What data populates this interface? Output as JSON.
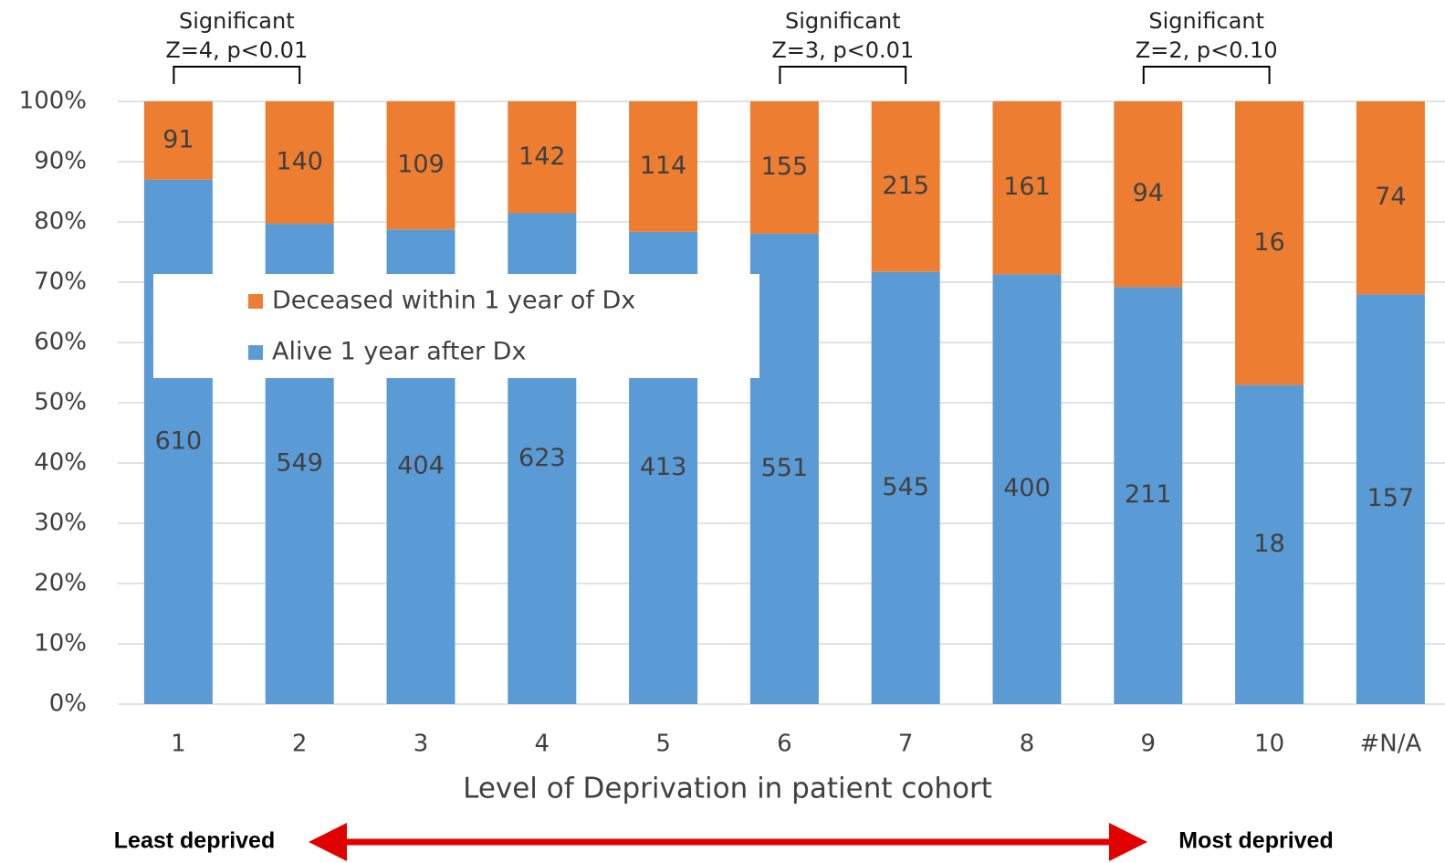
{
  "chart_data": {
    "type": "bar",
    "stacking": "percent",
    "x_label": "Level of Deprivation in patient cohort",
    "categories": [
      "1",
      "2",
      "3",
      "4",
      "5",
      "6",
      "7",
      "8",
      "9",
      "10",
      "#N/A"
    ],
    "series": [
      {
        "name": "Alive 1 year after Dx",
        "color": "#5b9bd5",
        "values": [
          610,
          549,
          404,
          623,
          413,
          551,
          545,
          400,
          211,
          18,
          157
        ]
      },
      {
        "name": "Deceased within 1 year of Dx",
        "color": "#ed7d31",
        "values": [
          91,
          140,
          109,
          142,
          114,
          155,
          215,
          161,
          94,
          16,
          74
        ]
      }
    ],
    "ylim": [
      0,
      100
    ],
    "yticks": [
      {
        "value": 0,
        "label": "0%"
      },
      {
        "value": 10,
        "label": "10%"
      },
      {
        "value": 20,
        "label": "20%"
      },
      {
        "value": 30,
        "label": "30%"
      },
      {
        "value": 40,
        "label": "40%"
      },
      {
        "value": 50,
        "label": "50%"
      },
      {
        "value": 60,
        "label": "60%"
      },
      {
        "value": 70,
        "label": "70%"
      },
      {
        "value": 80,
        "label": "80%"
      },
      {
        "value": 90,
        "label": "90%"
      },
      {
        "value": 100,
        "label": "100%"
      }
    ],
    "grid": true,
    "legend": "upper left",
    "annotations": [
      {
        "title": "Significant",
        "text": "Z=4, p<0.01"
      },
      {
        "title": "Significant",
        "text": "Z=3, p<0.01"
      },
      {
        "title": "Significant",
        "text": "Z=2, p<0.10"
      }
    ],
    "arrow_labels": {
      "left": "Least deprived",
      "right": "Most deprived"
    }
  }
}
